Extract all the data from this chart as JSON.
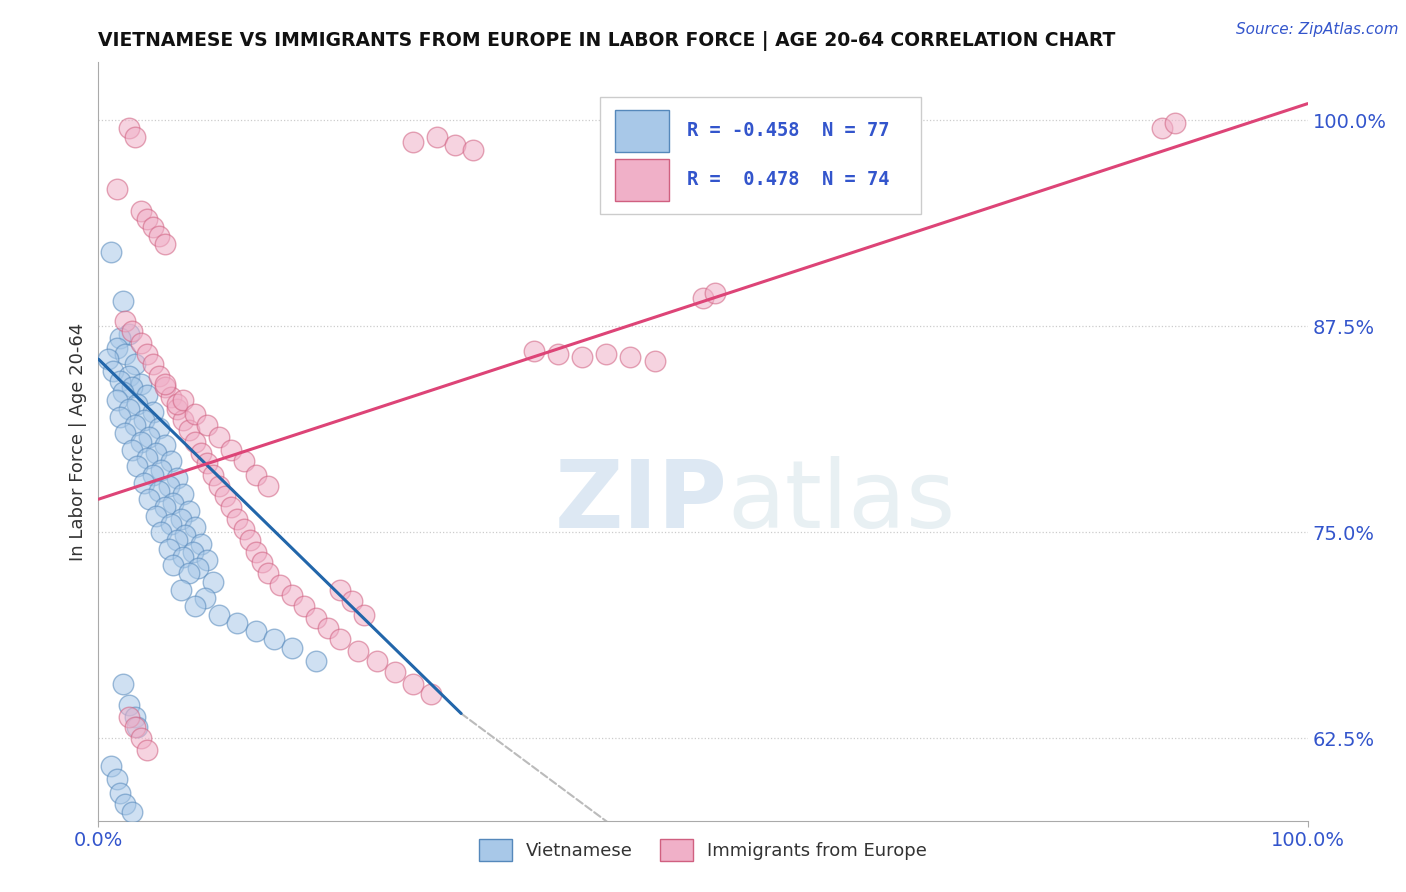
{
  "title": "VIETNAMESE VS IMMIGRANTS FROM EUROPE IN LABOR FORCE | AGE 20-64 CORRELATION CHART",
  "source": "Source: ZipAtlas.com",
  "ylabel": "In Labor Force | Age 20-64",
  "xlim": [
    0.0,
    1.0
  ],
  "ylim": [
    0.575,
    1.035
  ],
  "color_blue": "#a8c8e8",
  "color_blue_edge": "#5588bb",
  "color_pink": "#f0b0c8",
  "color_pink_edge": "#d06080",
  "color_blue_line": "#2266aa",
  "color_pink_line": "#dd4477",
  "color_dashed": "#bbbbbb",
  "watermark_zip": "ZIP",
  "watermark_atlas": "atlas",
  "title_color": "#111111",
  "source_color": "#3355cc",
  "axis_label_color": "#333333",
  "tick_color": "#3355cc",
  "blue_line_x": [
    0.0,
    0.3
  ],
  "blue_line_y": [
    0.855,
    0.64
  ],
  "pink_line_x": [
    0.0,
    1.0
  ],
  "pink_line_y": [
    0.77,
    1.01
  ],
  "dashed_line_x": [
    0.3,
    0.75
  ],
  "dashed_line_y": [
    0.64,
    0.395
  ],
  "scatter_blue": [
    [
      0.01,
      0.92
    ],
    [
      0.02,
      0.89
    ],
    [
      0.025,
      0.87
    ],
    [
      0.018,
      0.868
    ],
    [
      0.015,
      0.862
    ],
    [
      0.022,
      0.858
    ],
    [
      0.008,
      0.855
    ],
    [
      0.03,
      0.852
    ],
    [
      0.012,
      0.848
    ],
    [
      0.025,
      0.845
    ],
    [
      0.018,
      0.842
    ],
    [
      0.035,
      0.84
    ],
    [
      0.028,
      0.838
    ],
    [
      0.02,
      0.835
    ],
    [
      0.04,
      0.833
    ],
    [
      0.015,
      0.83
    ],
    [
      0.032,
      0.828
    ],
    [
      0.025,
      0.825
    ],
    [
      0.045,
      0.823
    ],
    [
      0.018,
      0.82
    ],
    [
      0.038,
      0.818
    ],
    [
      0.03,
      0.815
    ],
    [
      0.05,
      0.813
    ],
    [
      0.022,
      0.81
    ],
    [
      0.042,
      0.808
    ],
    [
      0.035,
      0.805
    ],
    [
      0.055,
      0.803
    ],
    [
      0.028,
      0.8
    ],
    [
      0.048,
      0.798
    ],
    [
      0.04,
      0.795
    ],
    [
      0.06,
      0.793
    ],
    [
      0.032,
      0.79
    ],
    [
      0.052,
      0.788
    ],
    [
      0.045,
      0.785
    ],
    [
      0.065,
      0.783
    ],
    [
      0.038,
      0.78
    ],
    [
      0.058,
      0.778
    ],
    [
      0.05,
      0.775
    ],
    [
      0.07,
      0.773
    ],
    [
      0.042,
      0.77
    ],
    [
      0.062,
      0.768
    ],
    [
      0.055,
      0.765
    ],
    [
      0.075,
      0.763
    ],
    [
      0.048,
      0.76
    ],
    [
      0.068,
      0.758
    ],
    [
      0.06,
      0.755
    ],
    [
      0.08,
      0.753
    ],
    [
      0.052,
      0.75
    ],
    [
      0.072,
      0.748
    ],
    [
      0.065,
      0.745
    ],
    [
      0.085,
      0.743
    ],
    [
      0.058,
      0.74
    ],
    [
      0.078,
      0.738
    ],
    [
      0.07,
      0.735
    ],
    [
      0.09,
      0.733
    ],
    [
      0.062,
      0.73
    ],
    [
      0.082,
      0.728
    ],
    [
      0.075,
      0.725
    ],
    [
      0.095,
      0.72
    ],
    [
      0.068,
      0.715
    ],
    [
      0.088,
      0.71
    ],
    [
      0.08,
      0.705
    ],
    [
      0.1,
      0.7
    ],
    [
      0.115,
      0.695
    ],
    [
      0.13,
      0.69
    ],
    [
      0.145,
      0.685
    ],
    [
      0.16,
      0.68
    ],
    [
      0.18,
      0.672
    ],
    [
      0.02,
      0.658
    ],
    [
      0.025,
      0.645
    ],
    [
      0.03,
      0.638
    ],
    [
      0.032,
      0.632
    ],
    [
      0.01,
      0.608
    ],
    [
      0.015,
      0.6
    ],
    [
      0.018,
      0.592
    ],
    [
      0.022,
      0.585
    ],
    [
      0.028,
      0.58
    ]
  ],
  "scatter_pink": [
    [
      0.025,
      0.995
    ],
    [
      0.03,
      0.99
    ],
    [
      0.28,
      0.99
    ],
    [
      0.295,
      0.985
    ],
    [
      0.31,
      0.982
    ],
    [
      0.26,
      0.987
    ],
    [
      0.015,
      0.958
    ],
    [
      0.035,
      0.945
    ],
    [
      0.04,
      0.94
    ],
    [
      0.045,
      0.935
    ],
    [
      0.05,
      0.93
    ],
    [
      0.055,
      0.925
    ],
    [
      0.022,
      0.878
    ],
    [
      0.028,
      0.872
    ],
    [
      0.035,
      0.865
    ],
    [
      0.04,
      0.858
    ],
    [
      0.045,
      0.852
    ],
    [
      0.05,
      0.845
    ],
    [
      0.055,
      0.838
    ],
    [
      0.06,
      0.832
    ],
    [
      0.065,
      0.825
    ],
    [
      0.07,
      0.818
    ],
    [
      0.075,
      0.812
    ],
    [
      0.08,
      0.805
    ],
    [
      0.085,
      0.798
    ],
    [
      0.09,
      0.792
    ],
    [
      0.095,
      0.785
    ],
    [
      0.1,
      0.778
    ],
    [
      0.105,
      0.772
    ],
    [
      0.11,
      0.765
    ],
    [
      0.115,
      0.758
    ],
    [
      0.12,
      0.752
    ],
    [
      0.125,
      0.745
    ],
    [
      0.13,
      0.738
    ],
    [
      0.135,
      0.732
    ],
    [
      0.14,
      0.725
    ],
    [
      0.15,
      0.718
    ],
    [
      0.16,
      0.712
    ],
    [
      0.17,
      0.705
    ],
    [
      0.18,
      0.698
    ],
    [
      0.19,
      0.692
    ],
    [
      0.2,
      0.685
    ],
    [
      0.215,
      0.678
    ],
    [
      0.23,
      0.672
    ],
    [
      0.245,
      0.665
    ],
    [
      0.26,
      0.658
    ],
    [
      0.275,
      0.652
    ],
    [
      0.055,
      0.84
    ],
    [
      0.065,
      0.828
    ],
    [
      0.36,
      0.86
    ],
    [
      0.38,
      0.858
    ],
    [
      0.4,
      0.856
    ],
    [
      0.42,
      0.858
    ],
    [
      0.44,
      0.856
    ],
    [
      0.46,
      0.854
    ],
    [
      0.07,
      0.83
    ],
    [
      0.08,
      0.822
    ],
    [
      0.09,
      0.815
    ],
    [
      0.1,
      0.808
    ],
    [
      0.11,
      0.8
    ],
    [
      0.12,
      0.793
    ],
    [
      0.13,
      0.785
    ],
    [
      0.14,
      0.778
    ],
    [
      0.025,
      0.638
    ],
    [
      0.03,
      0.632
    ],
    [
      0.035,
      0.625
    ],
    [
      0.04,
      0.618
    ],
    [
      0.2,
      0.715
    ],
    [
      0.21,
      0.708
    ],
    [
      0.22,
      0.7
    ],
    [
      0.5,
      0.892
    ],
    [
      0.51,
      0.895
    ],
    [
      0.88,
      0.995
    ],
    [
      0.89,
      0.998
    ]
  ]
}
